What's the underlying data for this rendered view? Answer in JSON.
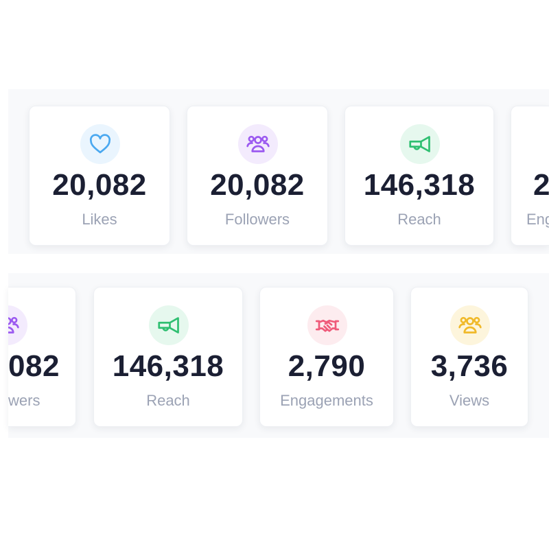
{
  "row1": [
    {
      "value": "20,082",
      "label": "Likes",
      "icon": "heart-icon",
      "color": "#4aa8f0",
      "bg": "#eaf5fe"
    },
    {
      "value": "20,082",
      "label": "Followers",
      "icon": "users-icon",
      "color": "#9b59f0",
      "bg": "#f3ebfd"
    },
    {
      "value": "146,318",
      "label": "Reach",
      "icon": "megaphone-icon",
      "color": "#2fbf71",
      "bg": "#e6f8ee"
    },
    {
      "value": "2",
      "label": "Eng",
      "icon": "",
      "color": "#1b1f33",
      "bg": "#ffffff"
    }
  ],
  "row2": [
    {
      "value": "082",
      "label": "wers",
      "icon": "users-icon",
      "color": "#9b59f0",
      "bg": "#f3ebfd"
    },
    {
      "value": "146,318",
      "label": "Reach",
      "icon": "megaphone-icon",
      "color": "#2fbf71",
      "bg": "#e6f8ee"
    },
    {
      "value": "2,790",
      "label": "Engagements",
      "icon": "handshake-icon",
      "color": "#ef5a7a",
      "bg": "#fdecef"
    },
    {
      "value": "3,736",
      "label": "Views",
      "icon": "users-icon",
      "color": "#f0b929",
      "bg": "#fdf5dc"
    }
  ]
}
